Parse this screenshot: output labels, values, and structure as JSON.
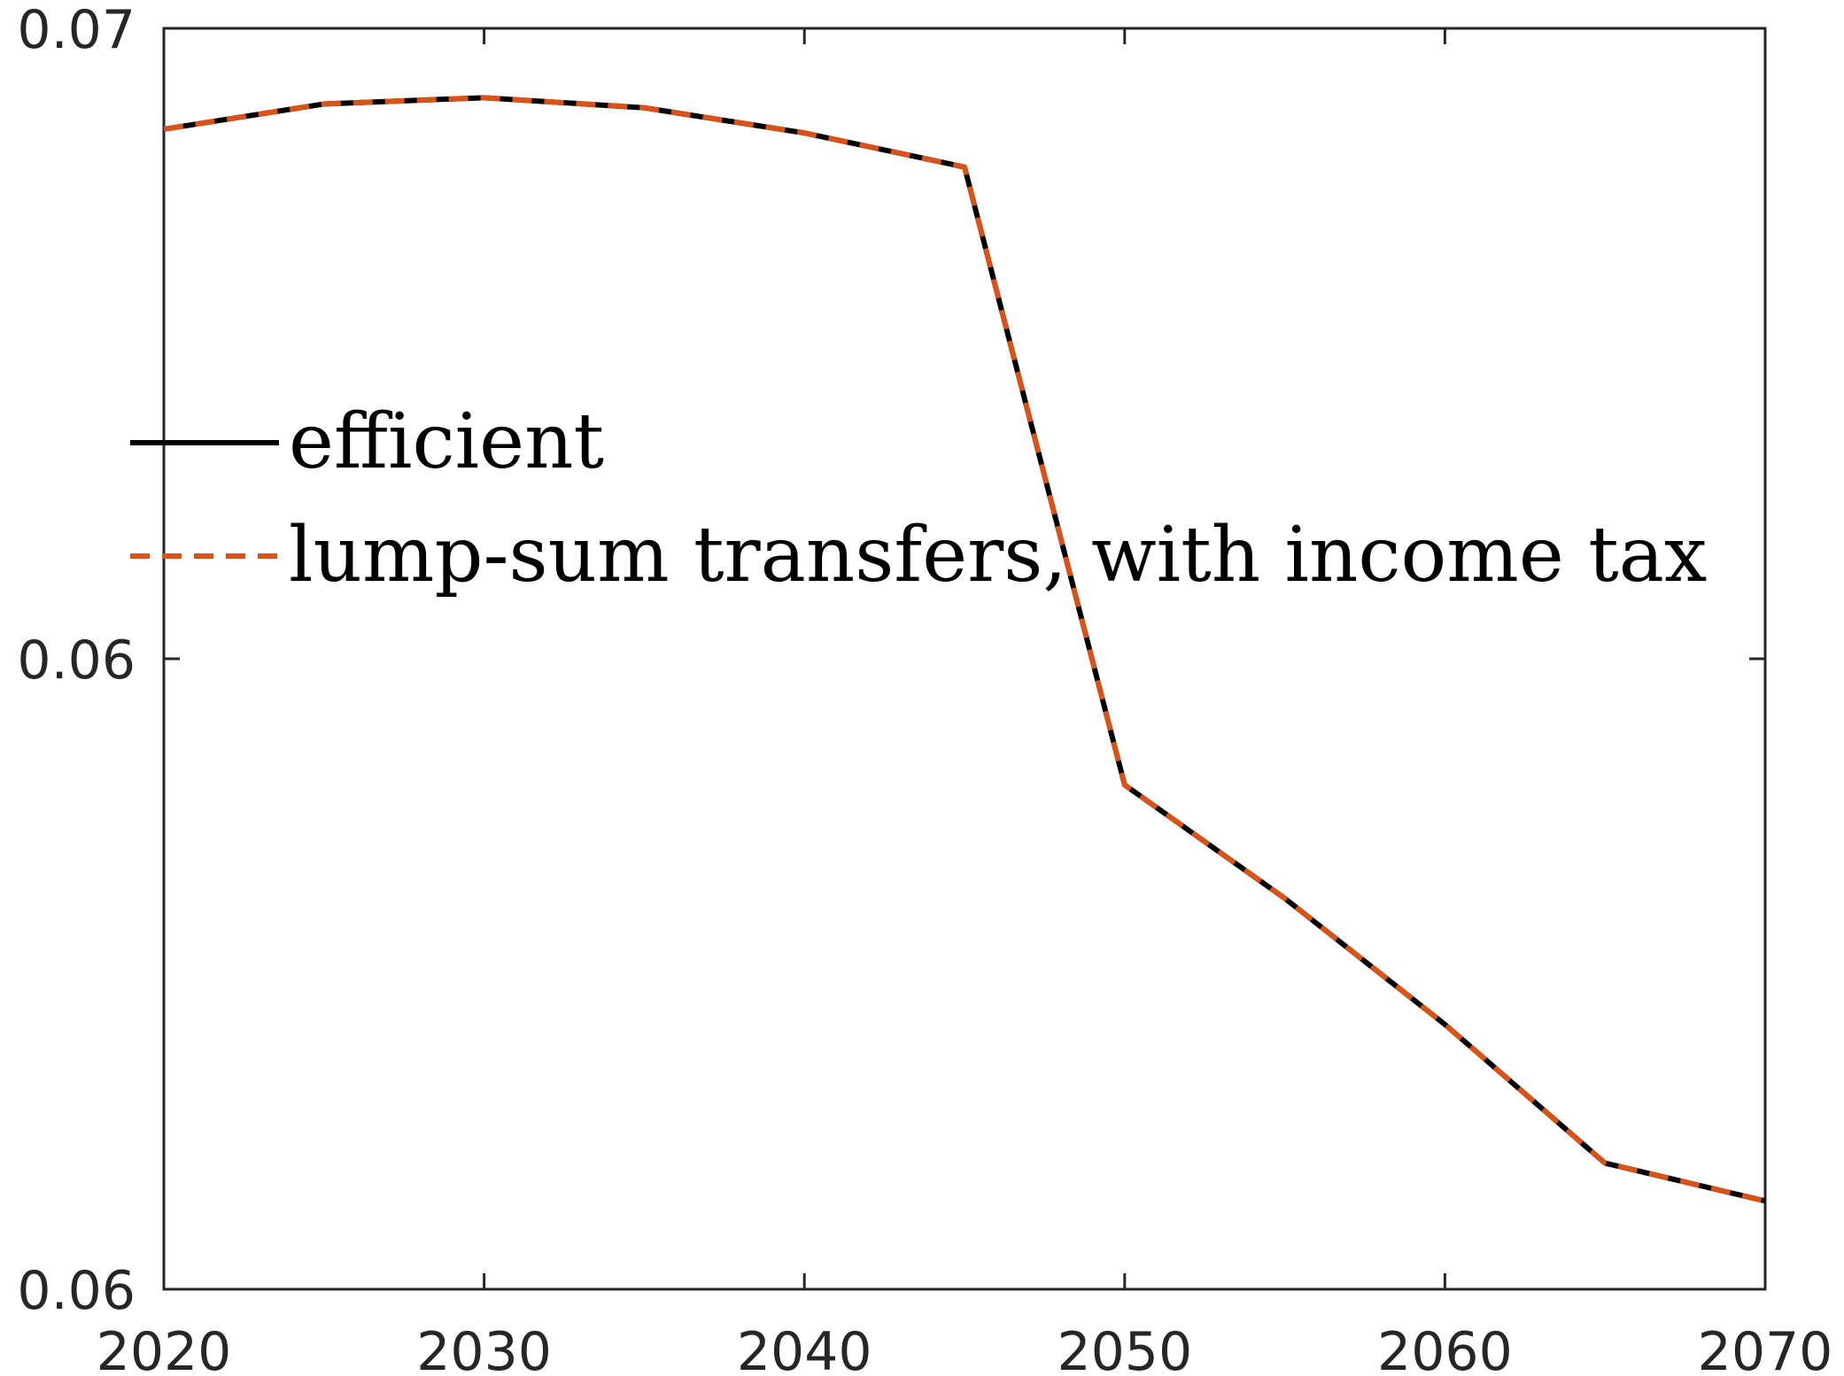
{
  "chart_data": {
    "type": "line",
    "title": "",
    "xlabel": "",
    "ylabel": "",
    "xlim": [
      2020,
      2070
    ],
    "ylim": [
      0.0598,
      0.0698
    ],
    "grid": false,
    "legend_placement": "center-left",
    "x_ticks": [
      2020,
      2030,
      2040,
      2050,
      2060,
      2070
    ],
    "x_tick_labels": [
      "2020",
      "2030",
      "2040",
      "2050",
      "2060",
      "2070"
    ],
    "y_ticks": [
      0.0598,
      0.0648,
      0.0698
    ],
    "y_tick_labels": [
      "0.06",
      "0.06",
      "0.07"
    ],
    "x": [
      2020,
      2025,
      2030,
      2035,
      2040,
      2045,
      2050,
      2055,
      2060,
      2065,
      2070
    ],
    "series": [
      {
        "name": "efficient",
        "color": "#000000",
        "style": "solid",
        "values": [
          0.069,
          0.0692,
          0.06925,
          0.06917,
          0.06897,
          0.0687,
          0.0638,
          0.0629,
          0.0619,
          0.0608,
          0.0605
        ]
      },
      {
        "name": "lump-sum transfers, with income tax",
        "color": "#D95319",
        "style": "dashed",
        "values": [
          0.069,
          0.0692,
          0.06925,
          0.06917,
          0.06897,
          0.0687,
          0.0638,
          0.0629,
          0.0619,
          0.0608,
          0.0605
        ]
      }
    ]
  }
}
